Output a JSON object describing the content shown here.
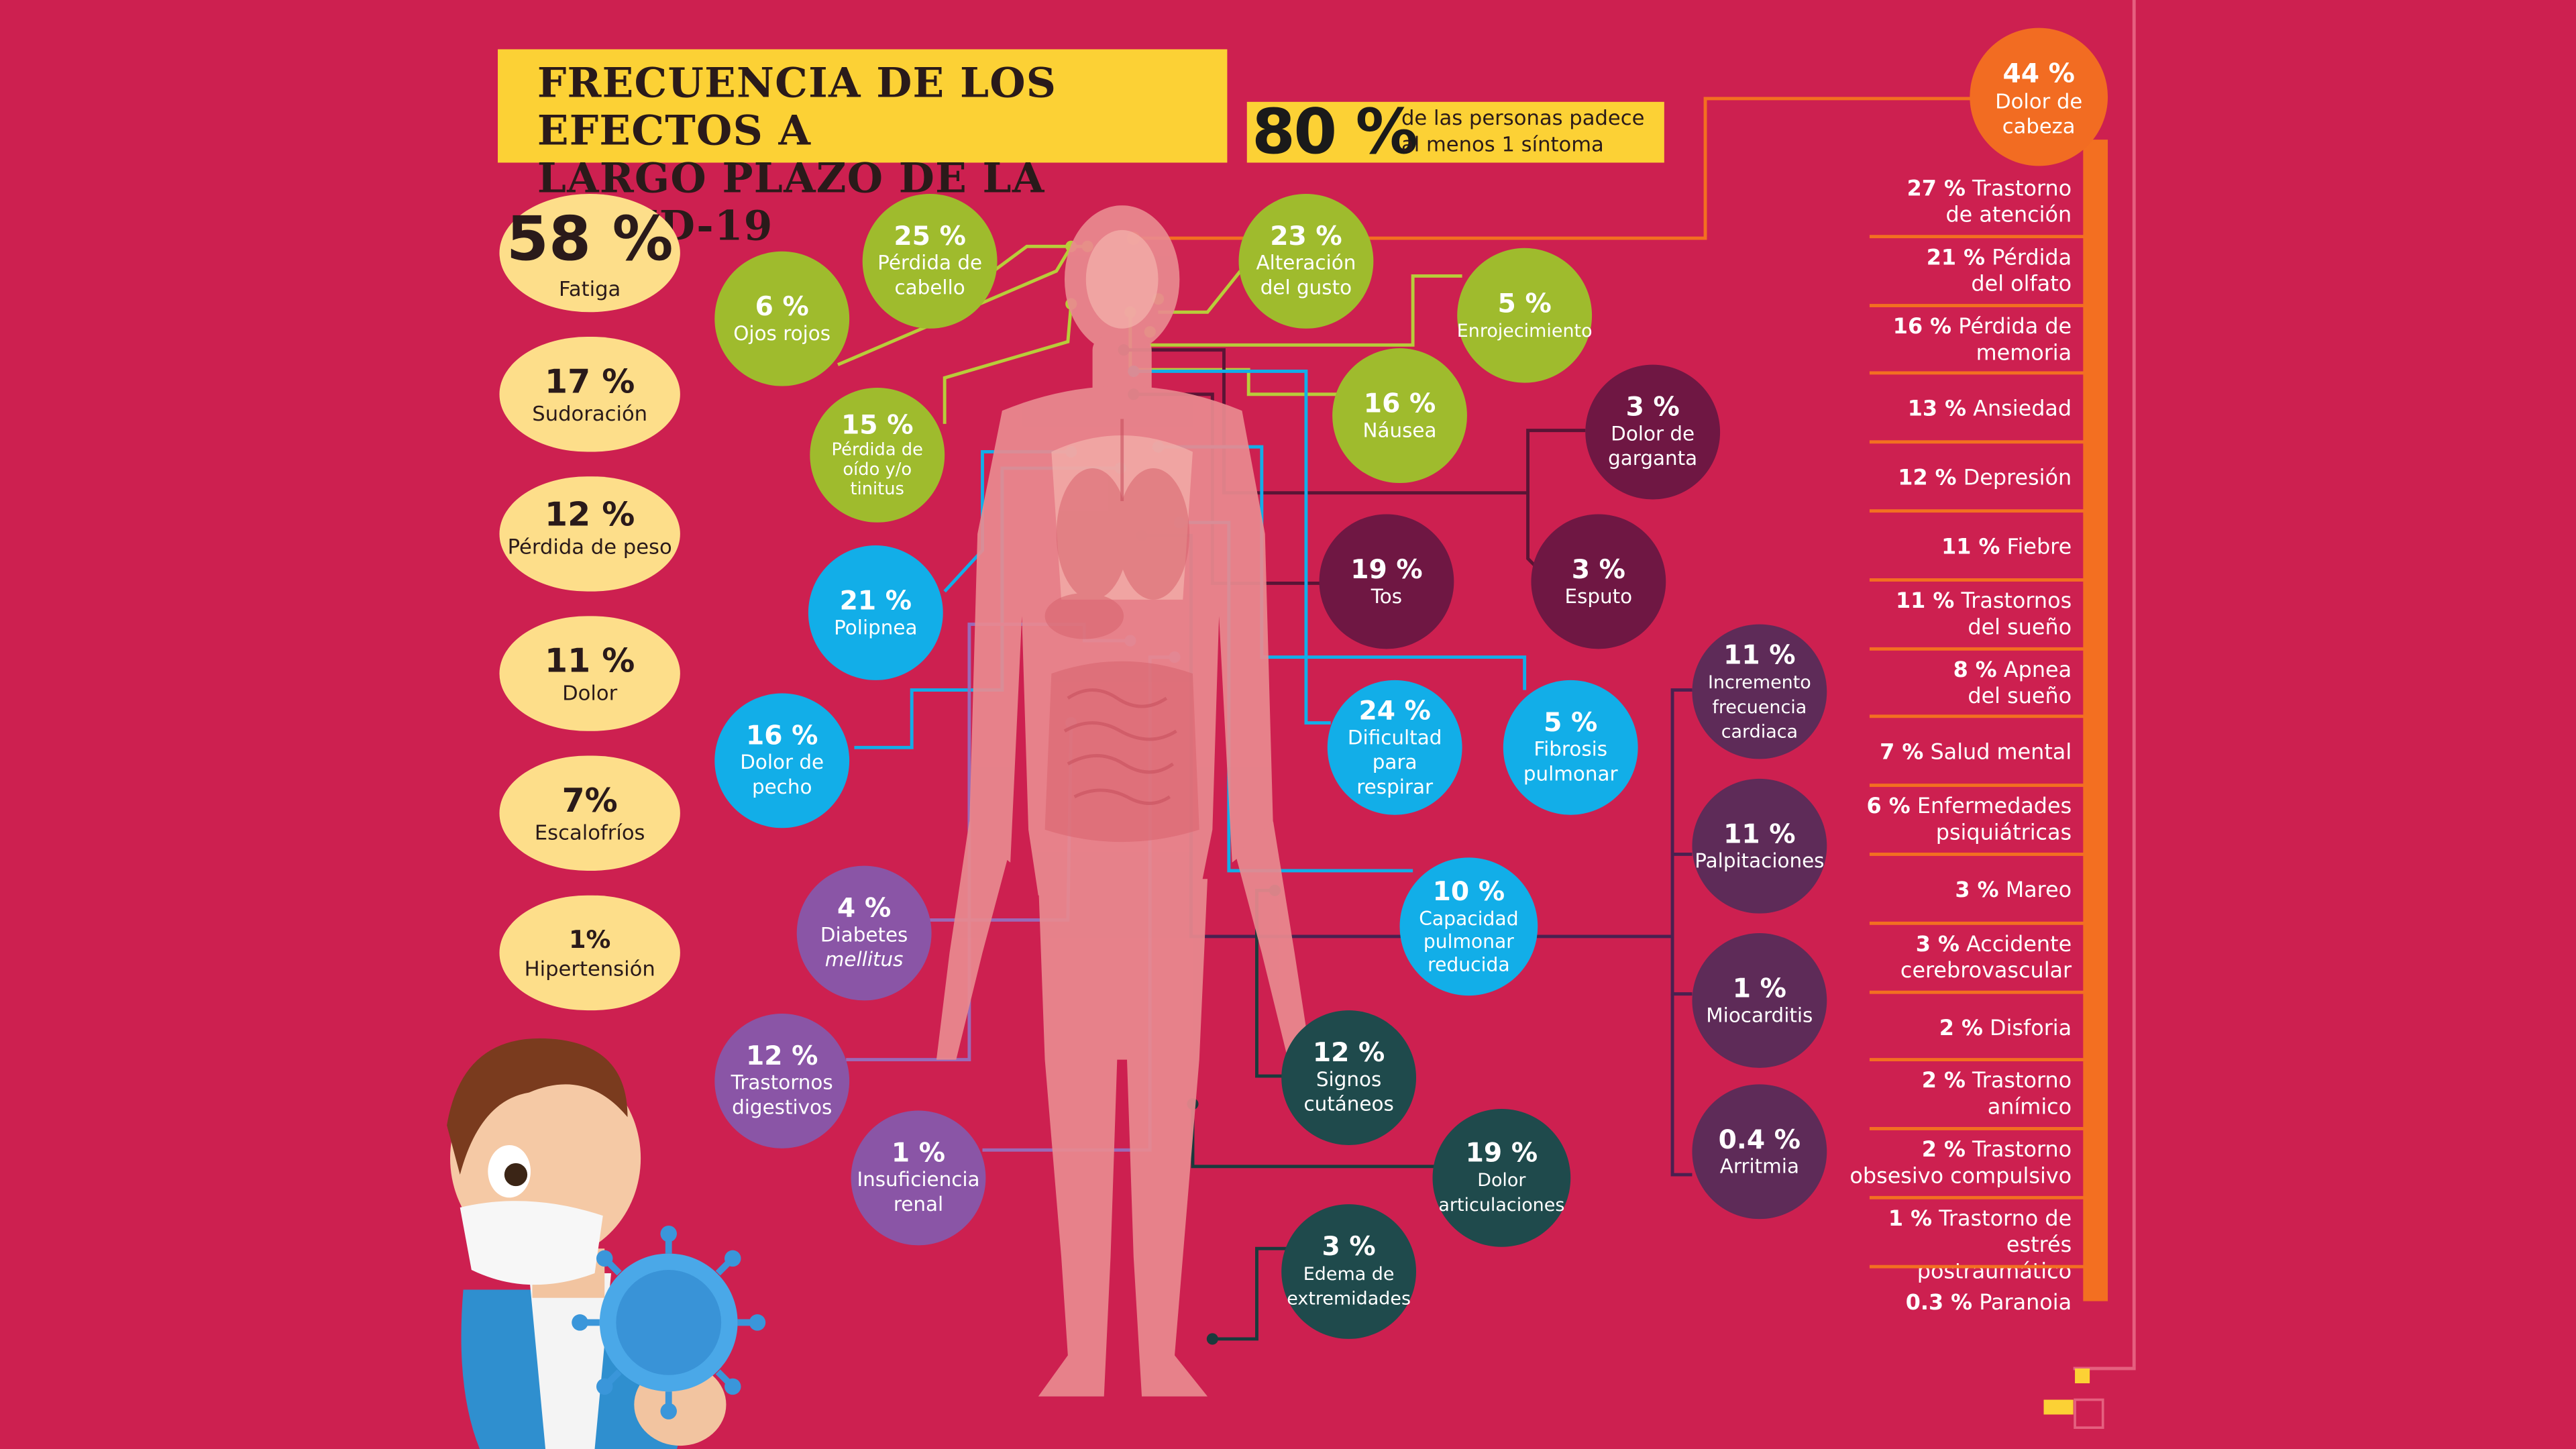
{
  "title": {
    "line1": "FRECUENCIA DE LOS EFECTOS A",
    "line2": "LARGO PLAZO DE LA COVID-19"
  },
  "headline_stat": {
    "percent": "80 %",
    "text_line1": "de las personas padece",
    "text_line2": "al menos 1 síntoma"
  },
  "left_pills": [
    {
      "percent": "58 %",
      "label": "Fatiga"
    },
    {
      "percent": "17 %",
      "label": "Sudoración"
    },
    {
      "percent": "12 %",
      "label": "Pérdida de peso"
    },
    {
      "percent": "11 %",
      "label": "Dolor"
    },
    {
      "percent": "7%",
      "label": "Escalofríos"
    },
    {
      "percent": "1%",
      "label": "Hipertensión"
    }
  ],
  "circles": [
    {
      "id": "ojos-rojos",
      "percent": "6 %",
      "label": "Ojos rojos",
      "color": "green"
    },
    {
      "id": "cabello",
      "percent": "25 %",
      "label": "Pérdida de cabello",
      "color": "green"
    },
    {
      "id": "oido",
      "percent": "15 %",
      "label": "Pérdida de oído y/o tinitus",
      "color": "green"
    },
    {
      "id": "gusto",
      "percent": "23 %",
      "label": "Alteración del gusto",
      "color": "green"
    },
    {
      "id": "enrojecimiento",
      "percent": "5 %",
      "label": "Enrojecimiento",
      "color": "green"
    },
    {
      "id": "nausea",
      "percent": "16 %",
      "label": "Náusea",
      "color": "green"
    },
    {
      "id": "garganta",
      "percent": "3 %",
      "label": "Dolor de garganta",
      "color": "maroon"
    },
    {
      "id": "tos",
      "percent": "19 %",
      "label": "Tos",
      "color": "maroon"
    },
    {
      "id": "esputo",
      "percent": "3 %",
      "label": "Esputo",
      "color": "maroon"
    },
    {
      "id": "polipnea",
      "percent": "21 %",
      "label": "Polipnea",
      "color": "blue"
    },
    {
      "id": "pecho",
      "percent": "16 %",
      "label": "Dolor de pecho",
      "color": "blue"
    },
    {
      "id": "respirar",
      "percent": "24 %",
      "label": "Dificultad para respirar",
      "color": "blue"
    },
    {
      "id": "fibrosis",
      "percent": "5 %",
      "label": "Fibrosis pulmonar",
      "color": "blue"
    },
    {
      "id": "capacidad",
      "percent": "10 %",
      "label": "Capacidad pulmonar reducida",
      "color": "blue"
    },
    {
      "id": "diabetes",
      "percent": "4 %",
      "label": "Diabetes",
      "label2": "mellitus",
      "color": "violet"
    },
    {
      "id": "digestivos",
      "percent": "12 %",
      "label": "Trastornos digestivos",
      "color": "violet"
    },
    {
      "id": "renal",
      "percent": "1 %",
      "label": "Insuficiencia renal",
      "color": "violet"
    },
    {
      "id": "frecuencia",
      "percent": "11 %",
      "label": "Incremento frecuencia cardiaca",
      "color": "purple"
    },
    {
      "id": "palpitaciones",
      "percent": "11 %",
      "label": "Palpitaciones",
      "color": "purple"
    },
    {
      "id": "miocarditis",
      "percent": "1 %",
      "label": "Miocarditis",
      "color": "purple"
    },
    {
      "id": "arritmia",
      "percent": "0.4 %",
      "label": "Arritmia",
      "color": "purple"
    },
    {
      "id": "cutaneos",
      "percent": "12 %",
      "label": "Signos cutáneos",
      "color": "teal"
    },
    {
      "id": "articulaciones",
      "percent": "19 %",
      "label": "Dolor articulaciones",
      "color": "teal"
    },
    {
      "id": "edema",
      "percent": "3 %",
      "label": "Edema de extremidades",
      "color": "teal"
    }
  ],
  "headache": {
    "percent": "44 %",
    "label_line1": "Dolor de",
    "label_line2": "cabeza"
  },
  "right_list": [
    {
      "percent": "27 %",
      "line1": "Trastorno",
      "line2": "de atención"
    },
    {
      "percent": "21 %",
      "line1": "Pérdida",
      "line2": "del olfato"
    },
    {
      "percent": "16 %",
      "line1": "Pérdida de",
      "line2": "memoria"
    },
    {
      "percent": "13 %",
      "line1": "Ansiedad",
      "line2": ""
    },
    {
      "percent": "12 %",
      "line1": "Depresión",
      "line2": ""
    },
    {
      "percent": "11 %",
      "line1": "Fiebre",
      "line2": ""
    },
    {
      "percent": "11 %",
      "line1": "Trastornos",
      "line2": "del sueño"
    },
    {
      "percent": "8 %",
      "line1": "Apnea",
      "line2": "del sueño"
    },
    {
      "percent": "7 %",
      "line1": "Salud mental",
      "line2": ""
    },
    {
      "percent": "6 %",
      "line1": "Enfermedades",
      "line2": "psiquiátricas"
    },
    {
      "percent": "3 %",
      "line1": "Mareo",
      "line2": ""
    },
    {
      "percent": "3 %",
      "line1": "Accidente",
      "line2": "cerebrovascular"
    },
    {
      "percent": "2 %",
      "line1": "Disforia",
      "line2": ""
    },
    {
      "percent": "2 %",
      "line1": "Trastorno",
      "line2": "anímico"
    },
    {
      "percent": "2 %",
      "line1": "Trastorno",
      "line2": "obsesivo compulsivo"
    },
    {
      "percent": "1 %",
      "line1": "Trastorno de estrés",
      "line2": "postraumático"
    },
    {
      "percent": "0.3 %",
      "line1": "Paranoia",
      "line2": ""
    }
  ],
  "colors": {
    "background": "#cd2050",
    "yellow": "#fcd135",
    "pill": "#fdde8a",
    "green": "#9fbb2d",
    "blue": "#12aee8",
    "maroon": "#6f1743",
    "violet": "#8a55a6",
    "purple": "#5e2b58",
    "teal": "#1f4a4c",
    "orange": "#f26c22"
  },
  "icons": [
    "human-body-illustration",
    "doctor-illustration",
    "virus-icon",
    "brand-logo-icon"
  ]
}
